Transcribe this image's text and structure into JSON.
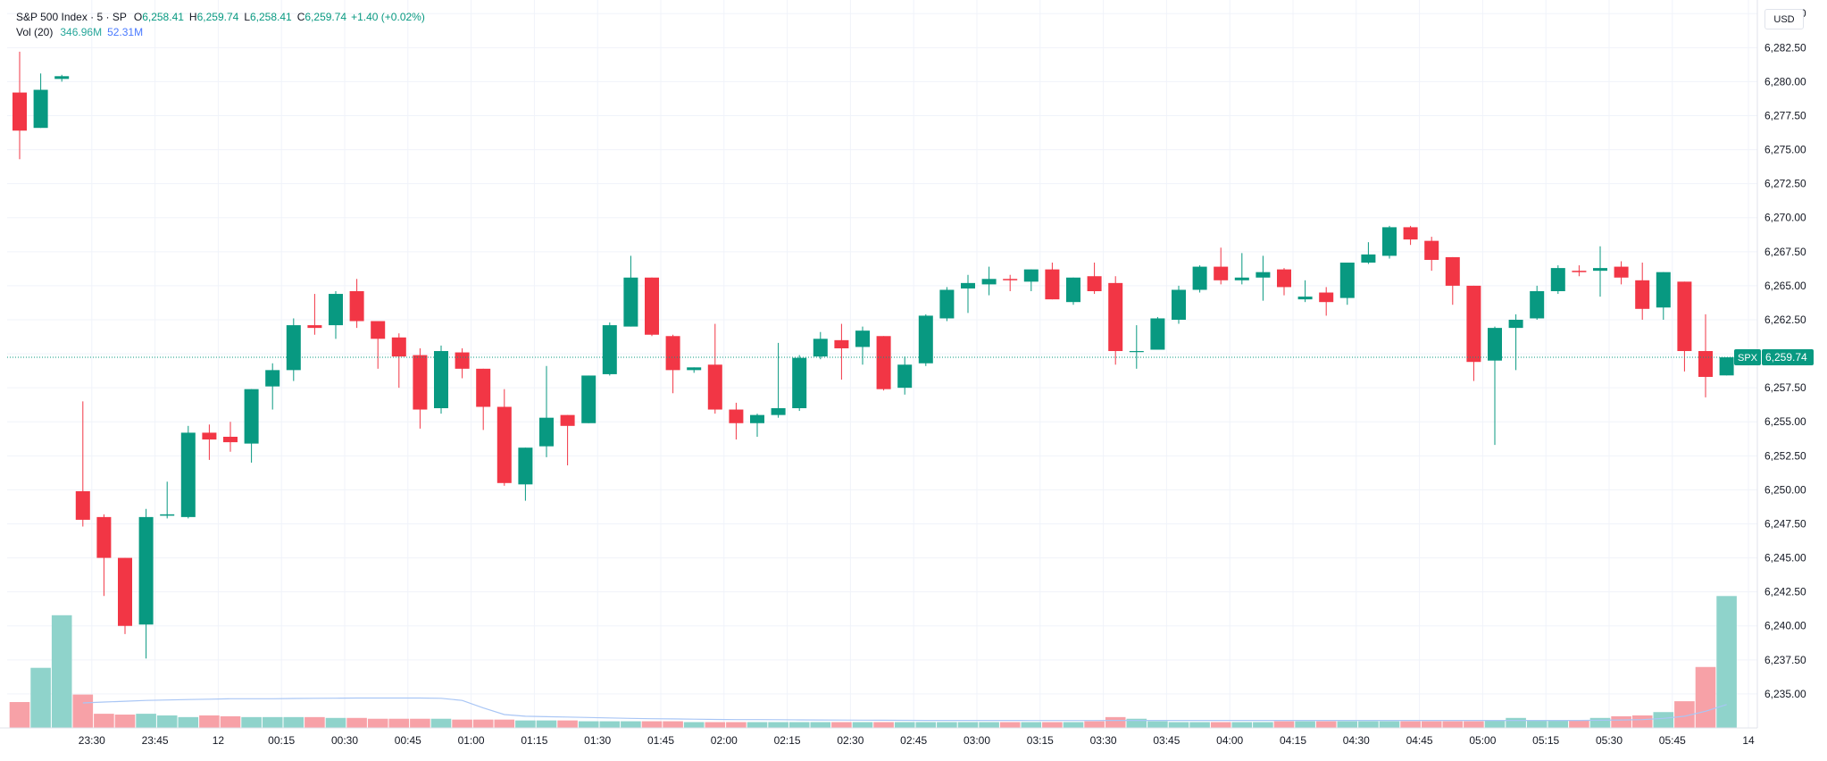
{
  "header": {
    "symbol": "S&P 500 Index · 5 · SP",
    "o_label": "O",
    "o_value": "6,258.41",
    "h_label": "H",
    "h_value": "6,259.74",
    "l_label": "L",
    "l_value": "6,258.41",
    "c_label": "C",
    "c_value": "6,259.74",
    "change": "+1.40 (+0.02%)",
    "vol_label": "Vol (20)",
    "vol_value": "346.96M",
    "vol_ma_value": "52.31M"
  },
  "currency": "USD",
  "price_tag": {
    "symbol": "SPX",
    "value": "6,259.74"
  },
  "colors": {
    "up": "#089981",
    "down": "#f23645",
    "vol_up": "#8fd3cb",
    "vol_down": "#f7a1a7",
    "vol_ma": "#a9c6f5",
    "grid": "#f0f3fa"
  },
  "chart_data": {
    "type": "candlestick",
    "title": "S&P 500 Index · 5 · SP",
    "ylim": [
      6232.5,
      6286.0
    ],
    "y_ticks": [
      "6,235.00",
      "6,237.50",
      "6,240.00",
      "6,242.50",
      "6,245.00",
      "6,247.50",
      "6,250.00",
      "6,252.50",
      "6,255.00",
      "6,257.50",
      "6,260.00",
      "6,262.50",
      "6,265.00",
      "6,267.50",
      "6,270.00",
      "6,272.50",
      "6,275.00",
      "6,277.50",
      "6,280.00",
      "6,282.50",
      "6,285.00"
    ],
    "x_ticks": [
      {
        "i": 3,
        "label": "23:30"
      },
      {
        "i": 6,
        "label": "23:45"
      },
      {
        "i": 9,
        "label": "12"
      },
      {
        "i": 12,
        "label": "00:15"
      },
      {
        "i": 15,
        "label": "00:30"
      },
      {
        "i": 18,
        "label": "00:45"
      },
      {
        "i": 21,
        "label": "01:00"
      },
      {
        "i": 24,
        "label": "01:15"
      },
      {
        "i": 27,
        "label": "01:30"
      },
      {
        "i": 30,
        "label": "01:45"
      },
      {
        "i": 33,
        "label": "02:00"
      },
      {
        "i": 36,
        "label": "02:15"
      },
      {
        "i": 39,
        "label": "02:30"
      },
      {
        "i": 42,
        "label": "02:45"
      },
      {
        "i": 45,
        "label": "03:00"
      },
      {
        "i": 48,
        "label": "03:15"
      },
      {
        "i": 51,
        "label": "03:30"
      },
      {
        "i": 54,
        "label": "03:45"
      },
      {
        "i": 57,
        "label": "04:00"
      },
      {
        "i": 60,
        "label": "04:15"
      },
      {
        "i": 63,
        "label": "04:30"
      },
      {
        "i": 66,
        "label": "04:45"
      },
      {
        "i": 69,
        "label": "05:00"
      },
      {
        "i": 72,
        "label": "05:15"
      },
      {
        "i": 75,
        "label": "05:30"
      },
      {
        "i": 78,
        "label": "05:45"
      },
      {
        "i": 81,
        "label": "14"
      }
    ],
    "vol_ylim": [
      0,
      230
    ],
    "candles": [
      {
        "o": 6279.2,
        "h": 6282.2,
        "l": 6274.3,
        "c": 6276.4
      },
      {
        "o": 6276.6,
        "h": 6280.6,
        "l": 6276.6,
        "c": 6279.4
      },
      {
        "o": 6280.2,
        "h": 6280.5,
        "l": 6280.0,
        "c": 6280.4
      },
      {
        "o": 6249.9,
        "h": 6256.5,
        "l": 6247.3,
        "c": 6247.8
      },
      {
        "o": 6248.0,
        "h": 6248.2,
        "l": 6242.2,
        "c": 6245.0
      },
      {
        "o": 6245.0,
        "h": 6245.0,
        "l": 6239.4,
        "c": 6240.0
      },
      {
        "o": 6240.1,
        "h": 6248.6,
        "l": 6237.6,
        "c": 6248.0
      },
      {
        "o": 6248.1,
        "h": 6250.6,
        "l": 6247.9,
        "c": 6248.2
      },
      {
        "o": 6248.0,
        "h": 6254.7,
        "l": 6247.9,
        "c": 6254.2
      },
      {
        "o": 6254.2,
        "h": 6254.8,
        "l": 6252.2,
        "c": 6253.7
      },
      {
        "o": 6253.9,
        "h": 6255.0,
        "l": 6252.8,
        "c": 6253.5
      },
      {
        "o": 6253.4,
        "h": 6257.4,
        "l": 6252.0,
        "c": 6257.4
      },
      {
        "o": 6257.6,
        "h": 6259.3,
        "l": 6255.9,
        "c": 6258.8
      },
      {
        "o": 6258.8,
        "h": 6262.6,
        "l": 6258.0,
        "c": 6262.1
      },
      {
        "o": 6262.1,
        "h": 6264.4,
        "l": 6261.4,
        "c": 6261.9
      },
      {
        "o": 6262.1,
        "h": 6264.6,
        "l": 6261.1,
        "c": 6264.4
      },
      {
        "o": 6264.6,
        "h": 6265.5,
        "l": 6261.9,
        "c": 6262.4
      },
      {
        "o": 6262.4,
        "h": 6262.4,
        "l": 6258.9,
        "c": 6261.1
      },
      {
        "o": 6261.2,
        "h": 6261.5,
        "l": 6257.5,
        "c": 6259.8
      },
      {
        "o": 6259.9,
        "h": 6260.4,
        "l": 6254.5,
        "c": 6255.9
      },
      {
        "o": 6256.0,
        "h": 6260.6,
        "l": 6255.6,
        "c": 6260.2
      },
      {
        "o": 6260.1,
        "h": 6260.4,
        "l": 6258.2,
        "c": 6258.9
      },
      {
        "o": 6258.9,
        "h": 6258.9,
        "l": 6254.4,
        "c": 6256.1
      },
      {
        "o": 6256.1,
        "h": 6257.4,
        "l": 6250.3,
        "c": 6250.5
      },
      {
        "o": 6250.4,
        "h": 6253.1,
        "l": 6249.2,
        "c": 6253.1
      },
      {
        "o": 6253.2,
        "h": 6259.1,
        "l": 6252.4,
        "c": 6255.3
      },
      {
        "o": 6255.5,
        "h": 6255.5,
        "l": 6251.8,
        "c": 6254.7
      },
      {
        "o": 6254.9,
        "h": 6258.4,
        "l": 6254.9,
        "c": 6258.4
      },
      {
        "o": 6258.5,
        "h": 6262.3,
        "l": 6258.4,
        "c": 6262.1
      },
      {
        "o": 6262.0,
        "h": 6267.2,
        "l": 6262.0,
        "c": 6265.6
      },
      {
        "o": 6265.6,
        "h": 6265.6,
        "l": 6261.3,
        "c": 6261.4
      },
      {
        "o": 6261.3,
        "h": 6261.4,
        "l": 6257.1,
        "c": 6258.8
      },
      {
        "o": 6258.8,
        "h": 6259.0,
        "l": 6258.6,
        "c": 6259.0
      },
      {
        "o": 6259.2,
        "h": 6262.2,
        "l": 6255.6,
        "c": 6255.9
      },
      {
        "o": 6255.9,
        "h": 6256.4,
        "l": 6253.7,
        "c": 6254.9
      },
      {
        "o": 6254.9,
        "h": 6255.6,
        "l": 6253.9,
        "c": 6255.5
      },
      {
        "o": 6255.5,
        "h": 6260.8,
        "l": 6255.3,
        "c": 6256.0
      },
      {
        "o": 6256.0,
        "h": 6259.9,
        "l": 6255.8,
        "c": 6259.7
      },
      {
        "o": 6259.8,
        "h": 6261.6,
        "l": 6259.6,
        "c": 6261.1
      },
      {
        "o": 6261.0,
        "h": 6262.2,
        "l": 6258.1,
        "c": 6260.4
      },
      {
        "o": 6260.5,
        "h": 6262.0,
        "l": 6259.2,
        "c": 6261.7
      },
      {
        "o": 6261.3,
        "h": 6261.3,
        "l": 6257.3,
        "c": 6257.4
      },
      {
        "o": 6257.5,
        "h": 6259.8,
        "l": 6257.0,
        "c": 6259.2
      },
      {
        "o": 6259.3,
        "h": 6262.9,
        "l": 6259.1,
        "c": 6262.8
      },
      {
        "o": 6262.6,
        "h": 6264.9,
        "l": 6262.4,
        "c": 6264.7
      },
      {
        "o": 6264.8,
        "h": 6265.8,
        "l": 6263.0,
        "c": 6265.2
      },
      {
        "o": 6265.1,
        "h": 6266.4,
        "l": 6264.3,
        "c": 6265.5
      },
      {
        "o": 6265.5,
        "h": 6265.8,
        "l": 6264.6,
        "c": 6265.4
      },
      {
        "o": 6265.3,
        "h": 6266.2,
        "l": 6264.6,
        "c": 6266.2
      },
      {
        "o": 6266.2,
        "h": 6266.7,
        "l": 6264.0,
        "c": 6264.0
      },
      {
        "o": 6263.8,
        "h": 6265.6,
        "l": 6263.6,
        "c": 6265.6
      },
      {
        "o": 6265.7,
        "h": 6266.7,
        "l": 6264.4,
        "c": 6264.6
      },
      {
        "o": 6265.2,
        "h": 6265.7,
        "l": 6259.2,
        "c": 6260.2
      },
      {
        "o": 6260.2,
        "h": 6262.1,
        "l": 6258.9,
        "c": 6260.2
      },
      {
        "o": 6260.3,
        "h": 6262.7,
        "l": 6260.3,
        "c": 6262.6
      },
      {
        "o": 6262.5,
        "h": 6265.0,
        "l": 6262.2,
        "c": 6264.7
      },
      {
        "o": 6264.7,
        "h": 6266.5,
        "l": 6264.5,
        "c": 6266.4
      },
      {
        "o": 6266.4,
        "h": 6267.8,
        "l": 6265.1,
        "c": 6265.4
      },
      {
        "o": 6265.4,
        "h": 6267.4,
        "l": 6265.1,
        "c": 6265.6
      },
      {
        "o": 6265.6,
        "h": 6267.2,
        "l": 6263.9,
        "c": 6266.0
      },
      {
        "o": 6266.2,
        "h": 6266.3,
        "l": 6264.3,
        "c": 6264.9
      },
      {
        "o": 6264.0,
        "h": 6265.4,
        "l": 6263.8,
        "c": 6264.2
      },
      {
        "o": 6264.5,
        "h": 6264.9,
        "l": 6262.8,
        "c": 6263.8
      },
      {
        "o": 6264.1,
        "h": 6266.7,
        "l": 6263.6,
        "c": 6266.7
      },
      {
        "o": 6266.7,
        "h": 6268.2,
        "l": 6266.6,
        "c": 6267.3
      },
      {
        "o": 6267.2,
        "h": 6269.4,
        "l": 6267.0,
        "c": 6269.3
      },
      {
        "o": 6269.3,
        "h": 6269.4,
        "l": 6268.0,
        "c": 6268.4
      },
      {
        "o": 6268.3,
        "h": 6268.6,
        "l": 6266.1,
        "c": 6266.9
      },
      {
        "o": 6267.1,
        "h": 6267.1,
        "l": 6263.6,
        "c": 6265.0
      },
      {
        "o": 6265.0,
        "h": 6265.0,
        "l": 6258.0,
        "c": 6259.4
      },
      {
        "o": 6259.5,
        "h": 6262.0,
        "l": 6253.3,
        "c": 6261.9
      },
      {
        "o": 6261.9,
        "h": 6262.9,
        "l": 6258.8,
        "c": 6262.5
      },
      {
        "o": 6262.6,
        "h": 6265.0,
        "l": 6262.5,
        "c": 6264.6
      },
      {
        "o": 6264.6,
        "h": 6266.5,
        "l": 6264.4,
        "c": 6266.3
      },
      {
        "o": 6266.1,
        "h": 6266.5,
        "l": 6265.7,
        "c": 6266.0
      },
      {
        "o": 6266.1,
        "h": 6267.9,
        "l": 6264.2,
        "c": 6266.3
      },
      {
        "o": 6266.4,
        "h": 6266.8,
        "l": 6265.1,
        "c": 6265.6
      },
      {
        "o": 6265.4,
        "h": 6266.7,
        "l": 6262.5,
        "c": 6263.3
      },
      {
        "o": 6263.4,
        "h": 6266.0,
        "l": 6262.5,
        "c": 6266.0
      },
      {
        "o": 6265.3,
        "h": 6265.3,
        "l": 6258.7,
        "c": 6260.2
      },
      {
        "o": 6260.2,
        "h": 6262.9,
        "l": 6256.8,
        "c": 6258.3
      },
      {
        "o": 6258.41,
        "h": 6259.74,
        "l": 6258.41,
        "c": 6259.74
      }
    ],
    "volume": [
      31,
      72,
      135,
      40,
      17,
      16,
      17,
      15,
      13,
      15,
      14,
      13,
      13,
      13,
      13,
      12,
      12,
      11,
      11,
      11,
      11,
      10,
      10,
      10,
      9,
      9,
      9,
      8,
      8,
      8,
      8,
      8,
      7,
      7,
      7,
      7,
      7,
      7,
      7,
      7,
      7,
      7,
      7,
      7,
      7,
      7,
      7,
      7,
      7,
      7,
      7,
      8,
      13,
      11,
      8,
      7,
      7,
      7,
      7,
      7,
      8,
      8,
      8,
      8,
      8,
      8,
      8,
      8,
      8,
      8,
      9,
      12,
      9,
      9,
      9,
      12,
      14,
      15,
      19,
      32,
      73,
      158
    ],
    "vol_ma": [
      null,
      null,
      null,
      30,
      31,
      32,
      33,
      33.5,
      34,
      34.5,
      35,
      35,
      35,
      35.3,
      35.5,
      35.6,
      35.8,
      35.8,
      35.8,
      35.8,
      35.5,
      33,
      24,
      16,
      14,
      13.5,
      13,
      12.5,
      12,
      11.5,
      11,
      10.8,
      10.5,
      10.2,
      10,
      9.9,
      9.8,
      9.6,
      9.5,
      9.4,
      9.3,
      9.2,
      9.1,
      9,
      9,
      9,
      9,
      9,
      8.9,
      8.9,
      8.9,
      8.9,
      9,
      9,
      9,
      9,
      9,
      9,
      9,
      9,
      9,
      9,
      9,
      9,
      9,
      9,
      9,
      9,
      9,
      9,
      9,
      9,
      9,
      9,
      9,
      9.2,
      9.5,
      10,
      11.5,
      14,
      20,
      28
    ]
  }
}
